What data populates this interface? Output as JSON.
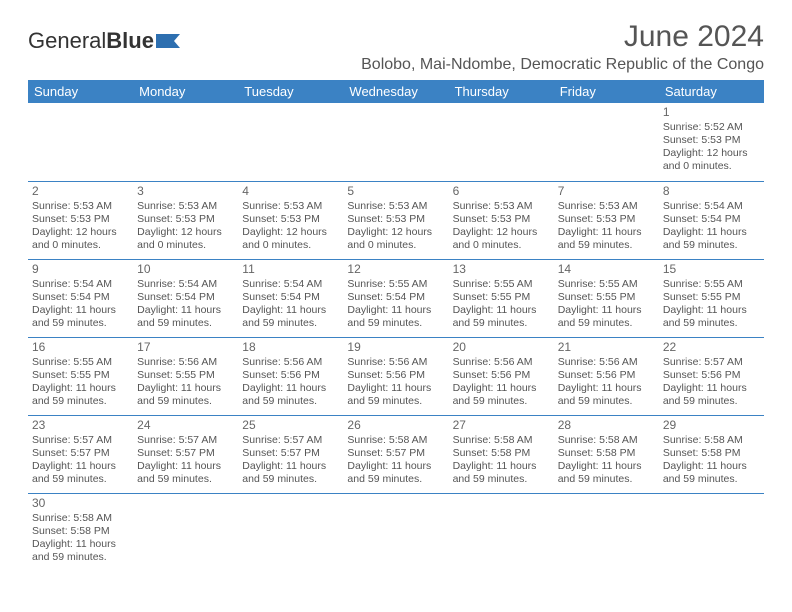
{
  "logo": {
    "text1": "General",
    "text2": "Blue"
  },
  "title": "June 2024",
  "location": "Bolobo, Mai-Ndombe, Democratic Republic of the Congo",
  "colors": {
    "header_bg": "#3b82c4",
    "header_text": "#ffffff",
    "border": "#3b82c4",
    "text": "#555555",
    "logo_accent": "#2d6fb0"
  },
  "daysOfWeek": [
    "Sunday",
    "Monday",
    "Tuesday",
    "Wednesday",
    "Thursday",
    "Friday",
    "Saturday"
  ],
  "weeks": [
    [
      null,
      null,
      null,
      null,
      null,
      null,
      {
        "n": "1",
        "sr": "Sunrise: 5:52 AM",
        "ss": "Sunset: 5:53 PM",
        "dl": "Daylight: 12 hours and 0 minutes."
      }
    ],
    [
      {
        "n": "2",
        "sr": "Sunrise: 5:53 AM",
        "ss": "Sunset: 5:53 PM",
        "dl": "Daylight: 12 hours and 0 minutes."
      },
      {
        "n": "3",
        "sr": "Sunrise: 5:53 AM",
        "ss": "Sunset: 5:53 PM",
        "dl": "Daylight: 12 hours and 0 minutes."
      },
      {
        "n": "4",
        "sr": "Sunrise: 5:53 AM",
        "ss": "Sunset: 5:53 PM",
        "dl": "Daylight: 12 hours and 0 minutes."
      },
      {
        "n": "5",
        "sr": "Sunrise: 5:53 AM",
        "ss": "Sunset: 5:53 PM",
        "dl": "Daylight: 12 hours and 0 minutes."
      },
      {
        "n": "6",
        "sr": "Sunrise: 5:53 AM",
        "ss": "Sunset: 5:53 PM",
        "dl": "Daylight: 12 hours and 0 minutes."
      },
      {
        "n": "7",
        "sr": "Sunrise: 5:53 AM",
        "ss": "Sunset: 5:53 PM",
        "dl": "Daylight: 11 hours and 59 minutes."
      },
      {
        "n": "8",
        "sr": "Sunrise: 5:54 AM",
        "ss": "Sunset: 5:54 PM",
        "dl": "Daylight: 11 hours and 59 minutes."
      }
    ],
    [
      {
        "n": "9",
        "sr": "Sunrise: 5:54 AM",
        "ss": "Sunset: 5:54 PM",
        "dl": "Daylight: 11 hours and 59 minutes."
      },
      {
        "n": "10",
        "sr": "Sunrise: 5:54 AM",
        "ss": "Sunset: 5:54 PM",
        "dl": "Daylight: 11 hours and 59 minutes."
      },
      {
        "n": "11",
        "sr": "Sunrise: 5:54 AM",
        "ss": "Sunset: 5:54 PM",
        "dl": "Daylight: 11 hours and 59 minutes."
      },
      {
        "n": "12",
        "sr": "Sunrise: 5:55 AM",
        "ss": "Sunset: 5:54 PM",
        "dl": "Daylight: 11 hours and 59 minutes."
      },
      {
        "n": "13",
        "sr": "Sunrise: 5:55 AM",
        "ss": "Sunset: 5:55 PM",
        "dl": "Daylight: 11 hours and 59 minutes."
      },
      {
        "n": "14",
        "sr": "Sunrise: 5:55 AM",
        "ss": "Sunset: 5:55 PM",
        "dl": "Daylight: 11 hours and 59 minutes."
      },
      {
        "n": "15",
        "sr": "Sunrise: 5:55 AM",
        "ss": "Sunset: 5:55 PM",
        "dl": "Daylight: 11 hours and 59 minutes."
      }
    ],
    [
      {
        "n": "16",
        "sr": "Sunrise: 5:55 AM",
        "ss": "Sunset: 5:55 PM",
        "dl": "Daylight: 11 hours and 59 minutes."
      },
      {
        "n": "17",
        "sr": "Sunrise: 5:56 AM",
        "ss": "Sunset: 5:55 PM",
        "dl": "Daylight: 11 hours and 59 minutes."
      },
      {
        "n": "18",
        "sr": "Sunrise: 5:56 AM",
        "ss": "Sunset: 5:56 PM",
        "dl": "Daylight: 11 hours and 59 minutes."
      },
      {
        "n": "19",
        "sr": "Sunrise: 5:56 AM",
        "ss": "Sunset: 5:56 PM",
        "dl": "Daylight: 11 hours and 59 minutes."
      },
      {
        "n": "20",
        "sr": "Sunrise: 5:56 AM",
        "ss": "Sunset: 5:56 PM",
        "dl": "Daylight: 11 hours and 59 minutes."
      },
      {
        "n": "21",
        "sr": "Sunrise: 5:56 AM",
        "ss": "Sunset: 5:56 PM",
        "dl": "Daylight: 11 hours and 59 minutes."
      },
      {
        "n": "22",
        "sr": "Sunrise: 5:57 AM",
        "ss": "Sunset: 5:56 PM",
        "dl": "Daylight: 11 hours and 59 minutes."
      }
    ],
    [
      {
        "n": "23",
        "sr": "Sunrise: 5:57 AM",
        "ss": "Sunset: 5:57 PM",
        "dl": "Daylight: 11 hours and 59 minutes."
      },
      {
        "n": "24",
        "sr": "Sunrise: 5:57 AM",
        "ss": "Sunset: 5:57 PM",
        "dl": "Daylight: 11 hours and 59 minutes."
      },
      {
        "n": "25",
        "sr": "Sunrise: 5:57 AM",
        "ss": "Sunset: 5:57 PM",
        "dl": "Daylight: 11 hours and 59 minutes."
      },
      {
        "n": "26",
        "sr": "Sunrise: 5:58 AM",
        "ss": "Sunset: 5:57 PM",
        "dl": "Daylight: 11 hours and 59 minutes."
      },
      {
        "n": "27",
        "sr": "Sunrise: 5:58 AM",
        "ss": "Sunset: 5:58 PM",
        "dl": "Daylight: 11 hours and 59 minutes."
      },
      {
        "n": "28",
        "sr": "Sunrise: 5:58 AM",
        "ss": "Sunset: 5:58 PM",
        "dl": "Daylight: 11 hours and 59 minutes."
      },
      {
        "n": "29",
        "sr": "Sunrise: 5:58 AM",
        "ss": "Sunset: 5:58 PM",
        "dl": "Daylight: 11 hours and 59 minutes."
      }
    ],
    [
      {
        "n": "30",
        "sr": "Sunrise: 5:58 AM",
        "ss": "Sunset: 5:58 PM",
        "dl": "Daylight: 11 hours and 59 minutes."
      },
      null,
      null,
      null,
      null,
      null,
      null
    ]
  ]
}
